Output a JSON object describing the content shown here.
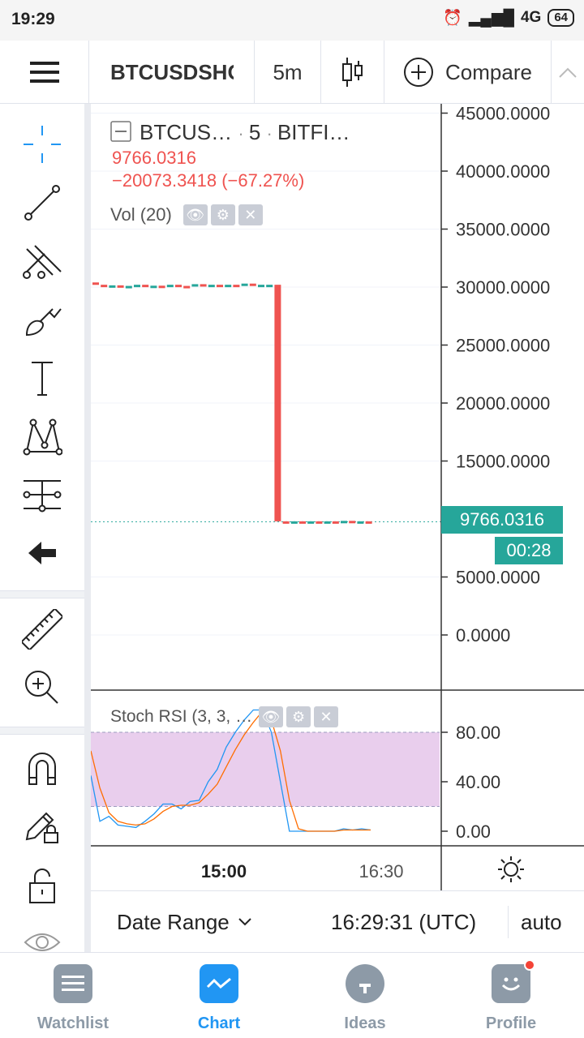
{
  "status_bar": {
    "time": "19:29",
    "network": "4G",
    "battery": "64"
  },
  "toolbar": {
    "symbol": "BTCUSDSHORTS",
    "interval": "5m",
    "compare_label": "Compare"
  },
  "legend": {
    "symbol_short": "BTCUS…",
    "interval": "5",
    "exchange": "BITFI…",
    "last_price": "9766.0316",
    "change": "−20073.3418 (−67.27%)",
    "volume_label": "Vol (20)"
  },
  "price_axis": {
    "ticks": [
      "45000.0000",
      "40000.0000",
      "35000.0000",
      "30000.0000",
      "25000.0000",
      "20000.0000",
      "15000.0000",
      "5000.0000",
      "0.0000"
    ],
    "price_label": "9766.0316",
    "countdown_label": "00:28"
  },
  "indicator": {
    "name": "Stoch RSI (3, 3, …",
    "ticks": [
      "80.00",
      "40.00",
      "0.00"
    ]
  },
  "time_axis": {
    "ticks": [
      "15:00",
      "16:30"
    ]
  },
  "bottom_bar": {
    "date_range": "Date Range",
    "time_utc": "16:29:31 (UTC)",
    "scale": "auto"
  },
  "nav": {
    "watchlist": "Watchlist",
    "chart": "Chart",
    "ideas": "Ideas",
    "profile": "Profile"
  },
  "colors": {
    "up": "#26a69a",
    "down": "#ef5350",
    "accent": "#2196f3",
    "stoch_band": "#e1bee7"
  },
  "chart_data": [
    {
      "type": "candlestick",
      "symbol": "BTCUSDSHORTS",
      "interval": "5m",
      "ylim": [
        0,
        45000
      ],
      "y_ticks": [
        0,
        5000,
        15000,
        20000,
        25000,
        30000,
        35000,
        40000,
        45000
      ],
      "x_ticks": [
        "15:00",
        "16:30"
      ],
      "candles": [
        {
          "o": 30400,
          "c": 30200
        },
        {
          "o": 30200,
          "c": 30050
        },
        {
          "o": 30050,
          "c": 30150
        },
        {
          "o": 30150,
          "c": 30000
        },
        {
          "o": 30000,
          "c": 30100
        },
        {
          "o": 30100,
          "c": 30200
        },
        {
          "o": 30200,
          "c": 30050
        },
        {
          "o": 30050,
          "c": 30120
        },
        {
          "o": 30120,
          "c": 30000
        },
        {
          "o": 30000,
          "c": 30200
        },
        {
          "o": 30200,
          "c": 30100
        },
        {
          "o": 30100,
          "c": 30050
        },
        {
          "o": 30050,
          "c": 30250
        },
        {
          "o": 30250,
          "c": 30100
        },
        {
          "o": 30100,
          "c": 30200
        },
        {
          "o": 30200,
          "c": 30150
        },
        {
          "o": 30150,
          "c": 30200
        },
        {
          "o": 30200,
          "c": 30150
        },
        {
          "o": 30150,
          "c": 30300
        },
        {
          "o": 30300,
          "c": 30200
        },
        {
          "o": 30200,
          "c": 30200
        },
        {
          "o": 30200,
          "c": 30200
        },
        {
          "o": 30200,
          "c": 9800
        },
        {
          "o": 9800,
          "c": 9750
        },
        {
          "o": 9750,
          "c": 9800
        },
        {
          "o": 9800,
          "c": 9700
        },
        {
          "o": 9700,
          "c": 9800
        },
        {
          "o": 9800,
          "c": 9760
        },
        {
          "o": 9760,
          "c": 9800
        },
        {
          "o": 9800,
          "c": 9770
        },
        {
          "o": 9770,
          "c": 9840
        },
        {
          "o": 9840,
          "c": 9766
        },
        {
          "o": 9766,
          "c": 9800
        },
        {
          "o": 9800,
          "c": 9766
        }
      ],
      "last_price": 9766.0316
    },
    {
      "type": "line",
      "name": "Stoch RSI (3, 3, …",
      "ylim": [
        0,
        100
      ],
      "y_ticks": [
        0,
        40,
        80
      ],
      "band": [
        20,
        80
      ],
      "series": [
        {
          "name": "K",
          "color": "#2196f3",
          "values": [
            45,
            8,
            12,
            5,
            4,
            3,
            8,
            14,
            22,
            22,
            18,
            24,
            25,
            40,
            50,
            68,
            80,
            90,
            98,
            98,
            80,
            40,
            0,
            0,
            0,
            0,
            0,
            0,
            2,
            1,
            2,
            1
          ]
        },
        {
          "name": "D",
          "color": "#ff6d00",
          "values": [
            65,
            35,
            15,
            8,
            6,
            5,
            6,
            10,
            16,
            20,
            21,
            21,
            23,
            30,
            38,
            52,
            66,
            78,
            88,
            97,
            90,
            65,
            25,
            2,
            0,
            0,
            0,
            0,
            1,
            1,
            1,
            1
          ]
        }
      ]
    }
  ]
}
